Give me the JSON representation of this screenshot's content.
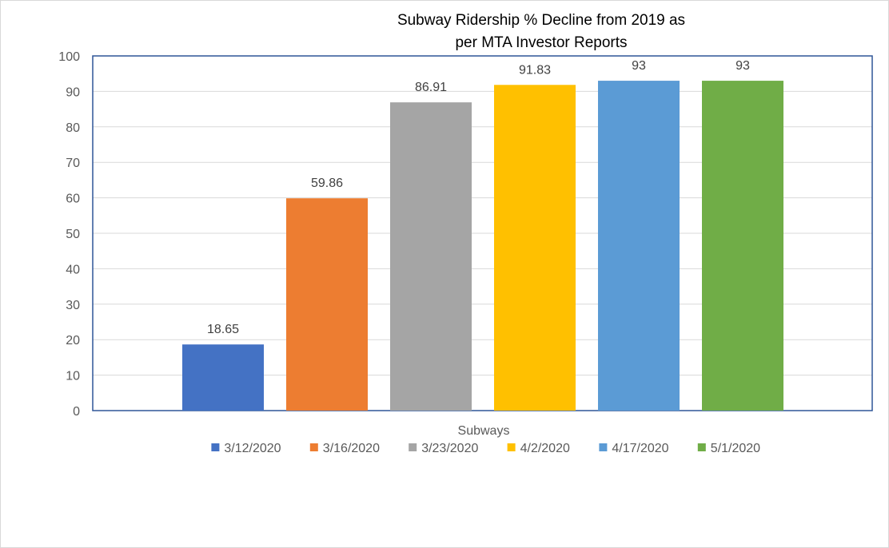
{
  "chart_data": {
    "type": "bar",
    "title_lines": [
      "Subway Ridership % Decline from 2019 as",
      "per MTA Investor Reports"
    ],
    "xlabel": "Subways",
    "ylabel": "",
    "ylim": [
      0,
      100
    ],
    "yticks": [
      0,
      10,
      20,
      30,
      40,
      50,
      60,
      70,
      80,
      90,
      100
    ],
    "grid": true,
    "legend_position": "bottom",
    "categories": [
      "Subways"
    ],
    "series": [
      {
        "name": "3/12/2020",
        "values": [
          18.65
        ],
        "label": "18.65",
        "color": "#4472c4"
      },
      {
        "name": "3/16/2020",
        "values": [
          59.86
        ],
        "label": "59.86",
        "color": "#ed7d31"
      },
      {
        "name": "3/23/2020",
        "values": [
          86.91
        ],
        "label": "86.91",
        "color": "#a5a5a5"
      },
      {
        "name": "4/2/2020",
        "values": [
          91.83
        ],
        "label": "91.83",
        "color": "#ffc000"
      },
      {
        "name": "4/17/2020",
        "values": [
          93
        ],
        "label": "93",
        "color": "#5b9bd5"
      },
      {
        "name": "5/1/2020",
        "values": [
          93
        ],
        "label": "93",
        "color": "#70ad47"
      }
    ],
    "colors": {
      "plot_border": "#2f5597",
      "gridline": "#d9d9d9"
    }
  }
}
